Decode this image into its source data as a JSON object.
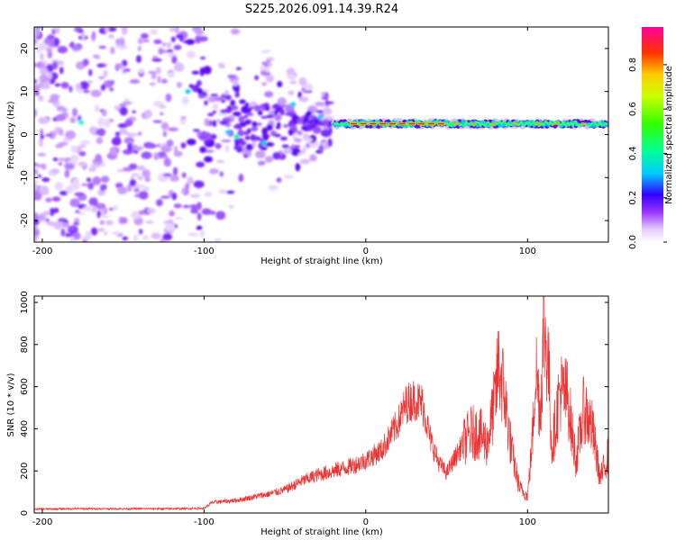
{
  "title": "S225.2026.091.14.39.R24",
  "chart_data": [
    {
      "type": "heatmap",
      "xlabel": "Height of straight line (km)",
      "ylabel": "Frequency (Hz)",
      "xlim": [
        -205,
        150
      ],
      "ylim": [
        -25,
        25
      ],
      "xticks": [
        -200,
        -100,
        0,
        100
      ],
      "yticks": [
        -20,
        -10,
        0,
        10,
        20
      ],
      "colorbar": {
        "label": "Normalized spectral amplitude",
        "range": [
          0.0,
          0.97
        ],
        "ticks": [
          0.0,
          0.2,
          0.4,
          0.6,
          0.8
        ]
      },
      "description_data": {
        "carrier_frequency_hz": 2.5,
        "scatter_region_x": [
          -205,
          -20
        ],
        "line_region_x": [
          -20,
          150
        ],
        "peak_amplitude_region_x": [
          -10,
          50
        ]
      }
    },
    {
      "type": "line",
      "xlabel": "Height of straight line (km)",
      "ylabel": "SNR (10 * v/v)",
      "xlim": [
        -205,
        150
      ],
      "ylim": [
        0,
        1030
      ],
      "xticks": [
        -200,
        -100,
        0,
        100
      ],
      "yticks": [
        0,
        200,
        400,
        600,
        800,
        1000
      ],
      "color": "#ee3333",
      "envelope": {
        "x": [
          -205,
          -180,
          -150,
          -120,
          -100,
          -95,
          -80,
          -60,
          -50,
          -40,
          -30,
          -20,
          -10,
          0,
          10,
          20,
          25,
          30,
          35,
          40,
          45,
          50,
          55,
          60,
          65,
          70,
          75,
          80,
          82,
          85,
          88,
          90,
          95,
          100,
          103,
          105,
          108,
          110,
          113,
          115,
          120,
          125,
          128,
          130,
          135,
          140,
          145,
          150
        ],
        "y": [
          18,
          20,
          20,
          20,
          22,
          50,
          60,
          90,
          110,
          150,
          180,
          200,
          220,
          250,
          300,
          430,
          520,
          540,
          520,
          350,
          240,
          190,
          260,
          330,
          380,
          380,
          330,
          540,
          700,
          600,
          420,
          300,
          120,
          80,
          350,
          700,
          480,
          900,
          700,
          300,
          580,
          550,
          350,
          250,
          500,
          400,
          160,
          280
        ]
      }
    }
  ]
}
